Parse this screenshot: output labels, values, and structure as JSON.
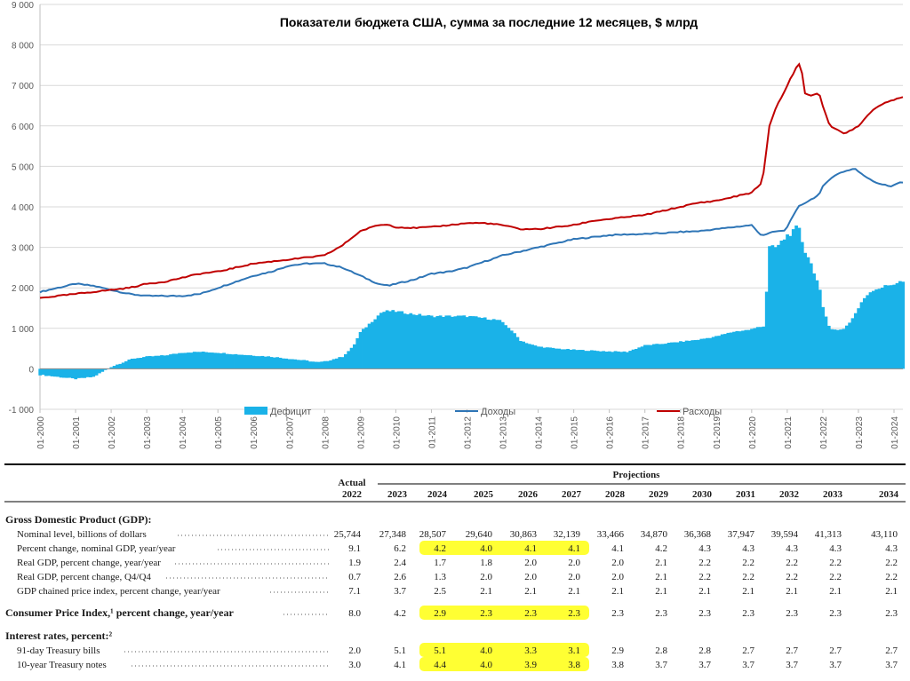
{
  "chart_data": {
    "type": "area+line",
    "title": "Показатели бюджета США, сумма за последние 12 месяцев, $ млрд",
    "ylim": [
      -1000,
      9000
    ],
    "yticks": [
      "-1 000",
      "0",
      "1 000",
      "2 000",
      "3 000",
      "4 000",
      "5 000",
      "6 000",
      "7 000",
      "8 000",
      "9 000"
    ],
    "ytick_values": [
      -1000,
      0,
      1000,
      2000,
      3000,
      4000,
      5000,
      6000,
      7000,
      8000,
      9000
    ],
    "xlim": [
      2000.0,
      2024.25
    ],
    "xticks": [
      "01-2000",
      "01-2001",
      "01-2002",
      "01-2003",
      "01-2004",
      "01-2005",
      "01-2006",
      "01-2007",
      "01-2008",
      "01-2009",
      "01-2010",
      "01-2011",
      "01-2012",
      "01-2013",
      "01-2014",
      "01-2015",
      "01-2016",
      "01-2017",
      "01-2018",
      "01-2019",
      "01-2020",
      "01-2021",
      "01-2022",
      "01-2023",
      "01-2024"
    ],
    "grid": true,
    "legend_position": "bottom",
    "colors": {
      "deficit": "#1ab2e8",
      "revenue": "#2e75b6",
      "spending": "#c00000",
      "grid": "#d9d9d9"
    },
    "series": [
      {
        "name": "Дефицит",
        "kind": "area",
        "x": [
          2000.0,
          2000.5,
          2001.0,
          2001.5,
          2001.8,
          2002.0,
          2002.3,
          2002.6,
          2003.0,
          2003.5,
          2004.0,
          2004.5,
          2005.0,
          2005.5,
          2006.0,
          2006.5,
          2007.0,
          2007.5,
          2007.8,
          2008.0,
          2008.5,
          2008.8,
          2009.0,
          2009.3,
          2009.6,
          2009.8,
          2010.0,
          2010.5,
          2011.0,
          2011.5,
          2012.0,
          2012.5,
          2012.9,
          2013.2,
          2013.5,
          2013.8,
          2014.0,
          2014.5,
          2015.0,
          2015.5,
          2016.0,
          2016.5,
          2017.0,
          2017.5,
          2018.0,
          2018.5,
          2019.0,
          2019.5,
          2019.9,
          2020.1,
          2020.2,
          2020.35,
          2020.5,
          2020.7,
          2020.9,
          2021.0,
          2021.1,
          2021.2,
          2021.3,
          2021.4,
          2021.5,
          2021.6,
          2021.75,
          2021.9,
          2022.0,
          2022.2,
          2022.4,
          2022.6,
          2022.8,
          2023.0,
          2023.2,
          2023.4,
          2023.6,
          2023.8,
          2024.0,
          2024.15
        ],
        "values": [
          -150,
          -200,
          -250,
          -200,
          -50,
          50,
          150,
          250,
          300,
          330,
          400,
          420,
          400,
          360,
          330,
          300,
          250,
          200,
          160,
          180,
          300,
          550,
          900,
          1150,
          1400,
          1430,
          1420,
          1350,
          1300,
          1300,
          1300,
          1250,
          1200,
          1000,
          700,
          600,
          550,
          500,
          470,
          450,
          430,
          420,
          580,
          620,
          670,
          720,
          800,
          920,
          960,
          1000,
          1050,
          1050,
          3000,
          3000,
          3200,
          3300,
          3350,
          3400,
          3550,
          3200,
          2900,
          2750,
          2400,
          2000,
          1500,
          1000,
          950,
          1000,
          1200,
          1500,
          1800,
          1950,
          2000,
          2050,
          2100,
          2150
        ]
      },
      {
        "name": "Доходы",
        "kind": "line",
        "x": [
          2000.0,
          2000.5,
          2001.0,
          2001.5,
          2002.0,
          2002.5,
          2003.0,
          2003.5,
          2004.0,
          2004.5,
          2005.0,
          2005.5,
          2006.0,
          2006.5,
          2007.0,
          2007.5,
          2008.0,
          2008.5,
          2009.0,
          2009.5,
          2009.8,
          2010.0,
          2010.5,
          2011.0,
          2011.5,
          2012.0,
          2012.5,
          2013.0,
          2013.5,
          2014.0,
          2014.5,
          2015.0,
          2015.5,
          2016.0,
          2016.5,
          2017.0,
          2017.5,
          2018.0,
          2018.5,
          2019.0,
          2019.5,
          2020.0,
          2020.1,
          2020.2,
          2020.3,
          2020.5,
          2020.7,
          2020.9,
          2021.0,
          2021.1,
          2021.2,
          2021.3,
          2021.5,
          2021.7,
          2021.9,
          2022.0,
          2022.2,
          2022.5,
          2022.7,
          2022.9,
          2023.1,
          2023.3,
          2023.5,
          2023.7,
          2023.9,
          2024.0,
          2024.15
        ],
        "values": [
          1900,
          2000,
          2100,
          2050,
          1950,
          1850,
          1800,
          1800,
          1800,
          1850,
          2000,
          2150,
          2300,
          2400,
          2550,
          2600,
          2600,
          2500,
          2300,
          2100,
          2050,
          2100,
          2200,
          2350,
          2400,
          2500,
          2650,
          2800,
          2900,
          3000,
          3100,
          3200,
          3250,
          3300,
          3320,
          3330,
          3350,
          3380,
          3400,
          3450,
          3500,
          3550,
          3450,
          3350,
          3300,
          3350,
          3400,
          3400,
          3500,
          3700,
          3800,
          4000,
          4100,
          4200,
          4300,
          4500,
          4700,
          4850,
          4900,
          4950,
          4800,
          4700,
          4600,
          4550,
          4500,
          4550,
          4600
        ]
      },
      {
        "name": "Расходы",
        "kind": "line",
        "x": [
          2000.0,
          2000.5,
          2001.0,
          2001.5,
          2002.0,
          2002.5,
          2003.0,
          2003.5,
          2004.0,
          2004.5,
          2005.0,
          2005.5,
          2006.0,
          2006.5,
          2007.0,
          2007.5,
          2008.0,
          2008.5,
          2009.0,
          2009.5,
          2009.8,
          2010.0,
          2010.5,
          2011.0,
          2011.5,
          2012.0,
          2012.5,
          2013.0,
          2013.5,
          2014.0,
          2014.5,
          2015.0,
          2015.5,
          2016.0,
          2016.5,
          2017.0,
          2017.5,
          2018.0,
          2018.5,
          2019.0,
          2019.5,
          2020.0,
          2020.1,
          2020.2,
          2020.3,
          2020.5,
          2020.7,
          2020.9,
          2021.0,
          2021.1,
          2021.2,
          2021.3,
          2021.4,
          2021.5,
          2021.7,
          2021.9,
          2022.0,
          2022.2,
          2022.4,
          2022.6,
          2022.8,
          2023.0,
          2023.2,
          2023.4,
          2023.6,
          2023.8,
          2024.0,
          2024.15
        ],
        "values": [
          1750,
          1800,
          1850,
          1900,
          1950,
          2000,
          2100,
          2150,
          2250,
          2350,
          2400,
          2500,
          2600,
          2650,
          2700,
          2750,
          2800,
          3050,
          3400,
          3550,
          3560,
          3500,
          3480,
          3500,
          3550,
          3600,
          3600,
          3550,
          3450,
          3450,
          3500,
          3550,
          3650,
          3700,
          3750,
          3800,
          3900,
          4000,
          4100,
          4150,
          4250,
          4350,
          4450,
          4500,
          4600,
          6000,
          6500,
          6800,
          7000,
          7200,
          7300,
          7600,
          7400,
          6800,
          6750,
          6800,
          6500,
          6000,
          5900,
          5800,
          5900,
          6000,
          6200,
          6400,
          6500,
          6600,
          6650,
          6700
        ]
      }
    ]
  },
  "legend": [
    {
      "name": "Дефицит",
      "kind": "box"
    },
    {
      "name": "Доходы",
      "kind": "line"
    },
    {
      "name": "Расходы",
      "kind": "line"
    }
  ],
  "table": {
    "header_actual": "Actual",
    "header_projections": "Projections",
    "years": [
      "2022",
      "2023",
      "2024",
      "2025",
      "2026",
      "2027",
      "2028",
      "2029",
      "2030",
      "2031",
      "2032",
      "2033",
      "2034"
    ],
    "highlight_color": "#ffff33",
    "sections": [
      {
        "heading": "Gross Domestic Product (GDP):",
        "rows": [
          {
            "label": "Nominal level, billions of dollars",
            "values": [
              "25,744",
              "27,348",
              "28,507",
              "29,640",
              "30,863",
              "32,139",
              "33,466",
              "34,870",
              "36,368",
              "37,947",
              "39,594",
              "41,313",
              "43,110"
            ],
            "highlight": false
          },
          {
            "label": "Percent change, nominal GDP, year/year",
            "values": [
              "9.1",
              "6.2",
              "4.2",
              "4.0",
              "4.1",
              "4.1",
              "4.1",
              "4.2",
              "4.3",
              "4.3",
              "4.3",
              "4.3",
              "4.3"
            ],
            "highlight": true
          },
          {
            "label": "Real GDP, percent change, year/year",
            "values": [
              "1.9",
              "2.4",
              "1.7",
              "1.8",
              "2.0",
              "2.0",
              "2.0",
              "2.1",
              "2.2",
              "2.2",
              "2.2",
              "2.2",
              "2.2"
            ],
            "highlight": false
          },
          {
            "label": "Real GDP, percent change, Q4/Q4",
            "values": [
              "0.7",
              "2.6",
              "1.3",
              "2.0",
              "2.0",
              "2.0",
              "2.0",
              "2.1",
              "2.2",
              "2.2",
              "2.2",
              "2.2",
              "2.2"
            ],
            "highlight": false
          },
          {
            "label": "GDP chained price index, percent change, year/year",
            "values": [
              "7.1",
              "3.7",
              "2.5",
              "2.1",
              "2.1",
              "2.1",
              "2.1",
              "2.1",
              "2.1",
              "2.1",
              "2.1",
              "2.1",
              "2.1"
            ],
            "highlight": false
          }
        ]
      },
      {
        "heading": "Consumer Price Index,¹ percent change, year/year",
        "rows": [
          {
            "label": "",
            "values": [
              "8.0",
              "4.2",
              "2.9",
              "2.3",
              "2.3",
              "2.3",
              "2.3",
              "2.3",
              "2.3",
              "2.3",
              "2.3",
              "2.3",
              "2.3"
            ],
            "highlight": true
          }
        ]
      },
      {
        "heading": "Interest rates, percent:²",
        "rows": [
          {
            "label": "91-day Treasury bills",
            "values": [
              "2.0",
              "5.1",
              "5.1",
              "4.0",
              "3.3",
              "3.1",
              "2.9",
              "2.8",
              "2.8",
              "2.7",
              "2.7",
              "2.7",
              "2.7"
            ],
            "highlight": true
          },
          {
            "label": "10-year Treasury notes",
            "values": [
              "3.0",
              "4.1",
              "4.4",
              "4.0",
              "3.9",
              "3.8",
              "3.8",
              "3.7",
              "3.7",
              "3.7",
              "3.7",
              "3.7",
              "3.7"
            ],
            "highlight": true
          }
        ]
      }
    ]
  }
}
